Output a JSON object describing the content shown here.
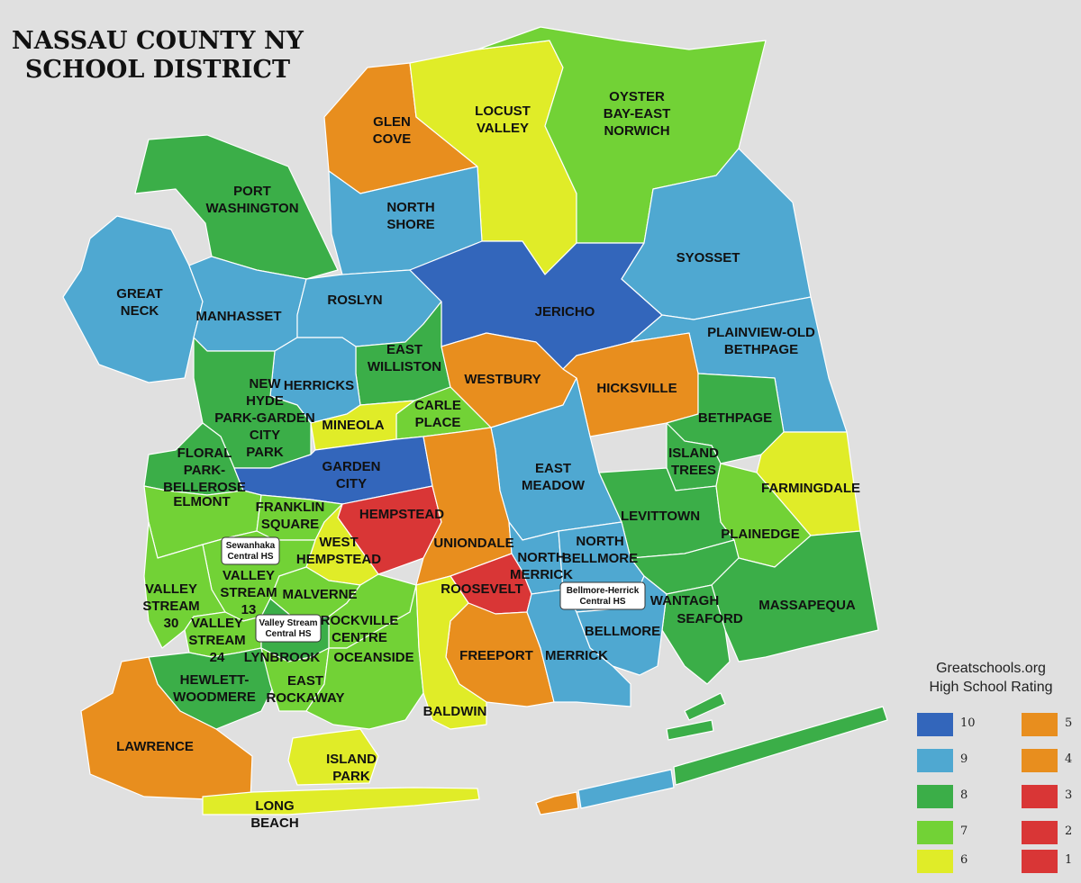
{
  "title": {
    "line1": "NASSAU COUNTY NY",
    "line2": "SCHOOL DISTRICT"
  },
  "colors": {
    "rating_10": "#3366bb",
    "rating_9": "#4fa8d1",
    "rating_8": "#3bae48",
    "rating_7": "#72d236",
    "rating_6": "#e0ec28",
    "rating_5": "#e88e1e",
    "rating_4": "#e88e1e",
    "rating_3": "#d93636",
    "rating_2": "#d93636",
    "rating_1": "#d93636"
  },
  "districts": [
    {
      "id": "glen-cove",
      "label": [
        "GLEN",
        "COVE"
      ],
      "rating": 5
    },
    {
      "id": "locust-valley",
      "label": [
        "LOCUST",
        "VALLEY"
      ],
      "rating": 6
    },
    {
      "id": "oyster-bay-east-norwich",
      "label": [
        "OYSTER",
        "BAY-EAST",
        "NORWICH"
      ],
      "rating": 7
    },
    {
      "id": "port-washington",
      "label": [
        "PORT",
        "WASHINGTON"
      ],
      "rating": 8
    },
    {
      "id": "north-shore",
      "label": [
        "NORTH",
        "SHORE"
      ],
      "rating": 9
    },
    {
      "id": "great-neck",
      "label": [
        "GREAT",
        "NECK"
      ],
      "rating": 9
    },
    {
      "id": "manhasset",
      "label": [
        "MANHASSET"
      ],
      "rating": 9
    },
    {
      "id": "roslyn",
      "label": [
        "ROSLYN"
      ],
      "rating": 9
    },
    {
      "id": "jericho",
      "label": [
        "JERICHO"
      ],
      "rating": 10
    },
    {
      "id": "syosset",
      "label": [
        "SYOSSET"
      ],
      "rating": 9
    },
    {
      "id": "plainview-old-bethpage",
      "label": [
        "PLAINVIEW-OLD",
        "BETHPAGE"
      ],
      "rating": 9
    },
    {
      "id": "east-williston",
      "label": [
        "EAST",
        "WILLISTON"
      ],
      "rating": 8
    },
    {
      "id": "herricks",
      "label": [
        "HERRICKS"
      ],
      "rating": 9
    },
    {
      "id": "new-hyde-park-garden-city-park",
      "label": [
        "NEW",
        "HYDE",
        "PARK-GARDEN",
        "CITY",
        "PARK"
      ],
      "rating": 8
    },
    {
      "id": "westbury",
      "label": [
        "WESTBURY"
      ],
      "rating": 5
    },
    {
      "id": "hicksville",
      "label": [
        "HICKSVILLE"
      ],
      "rating": 5
    },
    {
      "id": "carle-place",
      "label": [
        "CARLE",
        "PLACE"
      ],
      "rating": 7
    },
    {
      "id": "mineola",
      "label": [
        "MINEOLA"
      ],
      "rating": 6
    },
    {
      "id": "bethpage",
      "label": [
        "BETHPAGE"
      ],
      "rating": 8
    },
    {
      "id": "floral-park-bellerose",
      "label": [
        "FLORAL",
        "PARK-",
        "BELLEROSE"
      ],
      "rating": 8
    },
    {
      "id": "garden-city",
      "label": [
        "GARDEN",
        "CITY"
      ],
      "rating": 10
    },
    {
      "id": "east-meadow",
      "label": [
        "EAST",
        "MEADOW"
      ],
      "rating": 9
    },
    {
      "id": "island-trees",
      "label": [
        "ISLAND",
        "TREES"
      ],
      "rating": 8
    },
    {
      "id": "farmingdale",
      "label": [
        "FARMINGDALE"
      ],
      "rating": 6
    },
    {
      "id": "elmont",
      "label": [
        "ELMONT"
      ],
      "rating": 7
    },
    {
      "id": "franklin-square",
      "label": [
        "FRANKLIN",
        "SQUARE"
      ],
      "rating": 7
    },
    {
      "id": "hempstead",
      "label": [
        "HEMPSTEAD"
      ],
      "rating": 2
    },
    {
      "id": "levittown",
      "label": [
        "LEVITTOWN"
      ],
      "rating": 8
    },
    {
      "id": "plainedge",
      "label": [
        "PLAINEDGE"
      ],
      "rating": 7
    },
    {
      "id": "west-hempstead",
      "label": [
        "WEST",
        "HEMPSTEAD"
      ],
      "rating": 6
    },
    {
      "id": "uniondale",
      "label": [
        "UNIONDALE"
      ],
      "rating": 5
    },
    {
      "id": "north-merrick",
      "label": [
        "NORTH",
        "MERRICK"
      ],
      "rating": 9
    },
    {
      "id": "north-bellmore",
      "label": [
        "NORTH",
        "BELLMORE"
      ],
      "rating": 9
    },
    {
      "id": "valley-stream-13",
      "label": [
        "VALLEY",
        "STREAM",
        "13"
      ],
      "rating": 7
    },
    {
      "id": "valley-stream-30",
      "label": [
        "VALLEY",
        "STREAM",
        "30"
      ],
      "rating": 7
    },
    {
      "id": "malverne",
      "label": [
        "MALVERNE"
      ],
      "rating": 7
    },
    {
      "id": "roosevelt",
      "label": [
        "ROOSEVELT"
      ],
      "rating": 2
    },
    {
      "id": "wantagh",
      "label": [
        "WANTAGH"
      ],
      "rating": 8
    },
    {
      "id": "massapequa",
      "label": [
        "MASSAPEQUA"
      ],
      "rating": 8
    },
    {
      "id": "valley-stream-24",
      "label": [
        "VALLEY",
        "STREAM",
        "24"
      ],
      "rating": 7
    },
    {
      "id": "rockville-centre",
      "label": [
        "ROCKVILLE",
        "CENTRE"
      ],
      "rating": 7
    },
    {
      "id": "seaford",
      "label": [
        "SEAFORD"
      ],
      "rating": 8
    },
    {
      "id": "bellmore",
      "label": [
        "BELLMORE"
      ],
      "rating": 9
    },
    {
      "id": "lynbrook",
      "label": [
        "LYNBROOK"
      ],
      "rating": 8
    },
    {
      "id": "freeport",
      "label": [
        "FREEPORT"
      ],
      "rating": 5
    },
    {
      "id": "merrick",
      "label": [
        "MERRICK"
      ],
      "rating": 9
    },
    {
      "id": "hewlett-woodmere",
      "label": [
        "HEWLETT-",
        "WOODMERE"
      ],
      "rating": 8
    },
    {
      "id": "east-rockaway",
      "label": [
        "EAST",
        "ROCKAWAY"
      ],
      "rating": 7
    },
    {
      "id": "oceanside",
      "label": [
        "OCEANSIDE"
      ],
      "rating": 7
    },
    {
      "id": "baldwin",
      "label": [
        "BALDWIN"
      ],
      "rating": 6
    },
    {
      "id": "lawrence",
      "label": [
        "LAWRENCE"
      ],
      "rating": 5
    },
    {
      "id": "island-park",
      "label": [
        "ISLAND",
        "PARK"
      ],
      "rating": 6
    },
    {
      "id": "long-beach",
      "label": [
        "LONG",
        "BEACH"
      ],
      "rating": 6
    }
  ],
  "central_high_schools": [
    {
      "id": "sewanhaka",
      "label": [
        "Sewanhaka",
        "Central HS"
      ]
    },
    {
      "id": "valley-stream-central",
      "label": [
        "Valley Stream",
        "Central HS"
      ]
    },
    {
      "id": "bellmore-herrick",
      "label": [
        "Bellmore-Herrick",
        "Central HS"
      ]
    }
  ],
  "legend": {
    "title_line1": "Greatschools.org",
    "title_line2": "High School Rating",
    "items": [
      {
        "value": "10",
        "rating": 10
      },
      {
        "value": "9",
        "rating": 9
      },
      {
        "value": "8",
        "rating": 8
      },
      {
        "value": "7",
        "rating": 7
      },
      {
        "value": "6",
        "rating": 6
      },
      {
        "value": "5",
        "rating": 5
      },
      {
        "value": "4",
        "rating": 4
      },
      {
        "value": "3",
        "rating": 3
      },
      {
        "value": "2",
        "rating": 2
      },
      {
        "value": "1",
        "rating": 1
      }
    ]
  }
}
